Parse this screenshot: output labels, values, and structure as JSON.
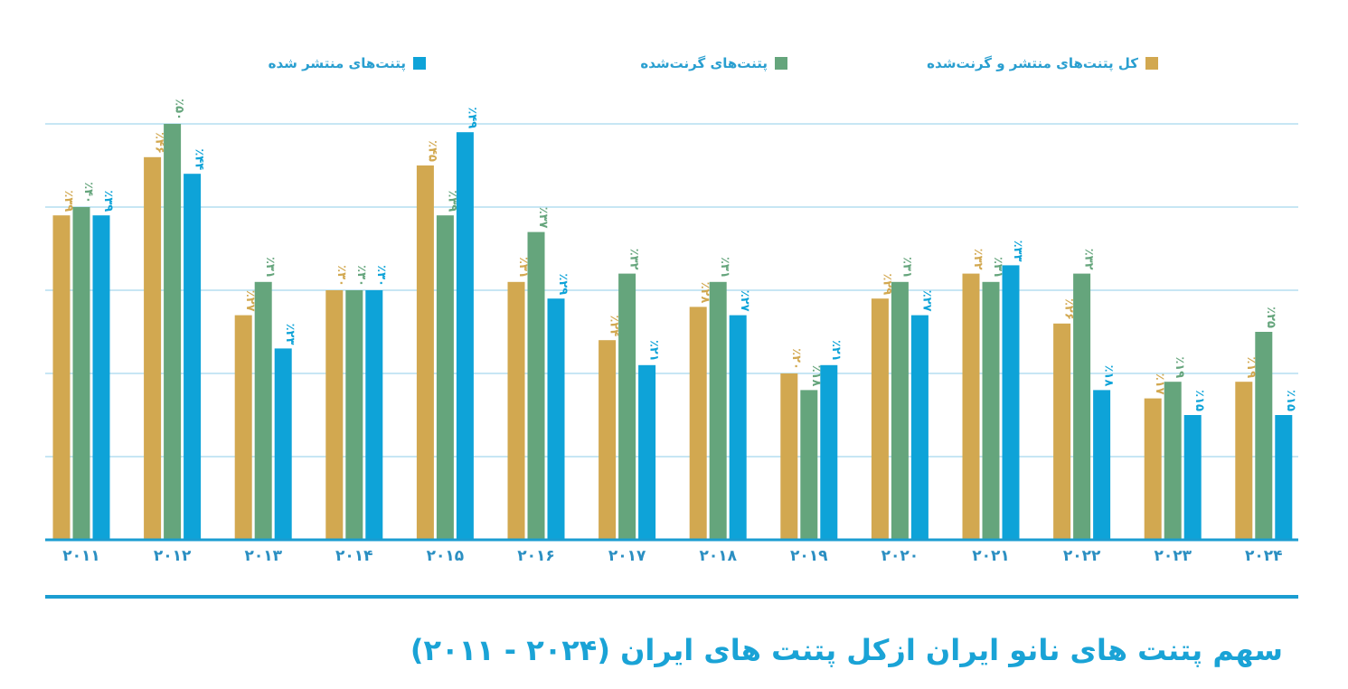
{
  "title": "سهم پتنت های نانو ایران ازکل پتنت های ایران (۲۰۲۴ - ۲۰۱۱)",
  "colors": {
    "gold": "#d2a850",
    "green": "#65a57c",
    "blue": "#0ea3d8",
    "axis": "#1b9dd1",
    "grid": "#8fcde8"
  },
  "chart_data": {
    "type": "bar",
    "categories": [
      "۲۰۱۱",
      "۲۰۱۲",
      "۲۰۱۳",
      "۲۰۱۴",
      "۲۰۱۵",
      "۲۰۱۶",
      "۲۰۱۷",
      "۲۰۱۸",
      "۲۰۱۹",
      "۲۰۲۰",
      "۲۰۲۱",
      "۲۰۲۲",
      "۲۰۲۳",
      "۲۰۲۴"
    ],
    "series": [
      {
        "name": "کل پتنت‌های منتشر و گرنت‌شده",
        "color": "#d2a850",
        "values": [
          39,
          46,
          27,
          30,
          45,
          31,
          24,
          28,
          20,
          29,
          32,
          26,
          17,
          19
        ],
        "labels": [
          "٪۳۹",
          "٪۴۶",
          "٪۲۷",
          "٪۳۰",
          "٪۴۵",
          "٪۳۱",
          "٪۲۴",
          "٪۲۸",
          "٪۲۰",
          "٪۲۹",
          "٪۳۲",
          "٪۲۶",
          "٪۱۷",
          "٪۱۹"
        ]
      },
      {
        "name": "پتنت‌های گرنت‌شده",
        "color": "#65a57c",
        "values": [
          40,
          50,
          31,
          30,
          39,
          37,
          32,
          31,
          18,
          31,
          31,
          32,
          19,
          25
        ],
        "labels": [
          "٪۴۰",
          "٪۵۰",
          "٪۳۱",
          "٪۳۰",
          "٪۳۹",
          "٪۳۷",
          "٪۳۲",
          "٪۳۱",
          "٪۱۸",
          "٪۳۱",
          "٪۳۱",
          "٪۳۲",
          "٪۱۹",
          "٪۲۵"
        ]
      },
      {
        "name": "پتنت‌های منتشر شده",
        "color": "#0ea3d8",
        "values": [
          39,
          44,
          23,
          30,
          49,
          29,
          21,
          27,
          21,
          27,
          33,
          18,
          15,
          15
        ],
        "labels": [
          "٪۳۹",
          "٪۴۴",
          "٪۲۳",
          "٪۳۰",
          "٪۴۹",
          "٪۲۹",
          "٪۲۱",
          "٪۲۷",
          "٪۲۱",
          "٪۲۷",
          "٪۳۳",
          "٪۱۸",
          "٪۱۵",
          "٪۱۵"
        ]
      }
    ],
    "ylim": [
      0,
      50
    ],
    "grid": true,
    "legend_position": "top"
  }
}
